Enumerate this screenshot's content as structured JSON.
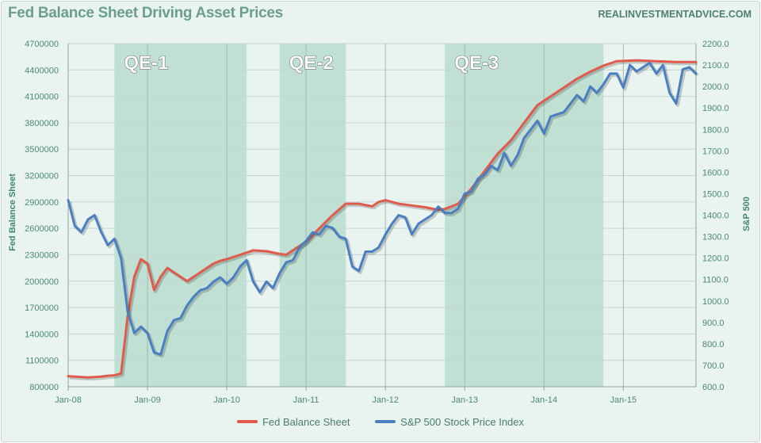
{
  "chart_data": {
    "type": "line",
    "title": "Fed Balance Sheet Driving Asset Prices",
    "source": "REALINVESTMENTADVICE.COM",
    "ylabel_left": "Fed Balance Sheet",
    "ylabel_right": "S&P 500",
    "ylim_left": [
      800000,
      4700000
    ],
    "ylim_right": [
      600.0,
      2200.0
    ],
    "xlim": [
      "2008-01",
      "2015-12"
    ],
    "y_ticks_left": [
      "800000",
      "1100000",
      "1400000",
      "1700000",
      "2000000",
      "2300000",
      "2600000",
      "2900000",
      "3200000",
      "3500000",
      "3800000",
      "4100000",
      "4400000",
      "4700000"
    ],
    "y_ticks_right": [
      "600.0",
      "700.0",
      "800.0",
      "900.0",
      "1000.0",
      "1100.0",
      "1200.0",
      "1300.0",
      "1400.0",
      "1500.0",
      "1600.0",
      "1700.0",
      "1800.0",
      "1900.0",
      "2000.0",
      "2100.0",
      "2200.0"
    ],
    "x_ticks": [
      {
        "label": "Jan-08",
        "x": "2008-01"
      },
      {
        "label": "Jan-09",
        "x": "2009-01"
      },
      {
        "label": "Jan-10",
        "x": "2010-01"
      },
      {
        "label": "Jan-11",
        "x": "2011-01"
      },
      {
        "label": "Jan-12",
        "x": "2012-01"
      },
      {
        "label": "Jan-13",
        "x": "2013-01"
      },
      {
        "label": "Jan-14",
        "x": "2014-01"
      },
      {
        "label": "Jan-15",
        "x": "2015-01"
      }
    ],
    "annotations": [
      {
        "label": "QE-1",
        "start": "2008-08",
        "end": "2010-04"
      },
      {
        "label": "QE-2",
        "start": "2010-09",
        "end": "2011-07"
      },
      {
        "label": "QE-3",
        "start": "2012-10",
        "end": "2014-10"
      }
    ],
    "grid": true,
    "legend_position": "bottom",
    "series": [
      {
        "name": "Fed Balance Sheet",
        "axis": "left",
        "color": "#e05b4c",
        "points": [
          [
            "2008-01",
            920000
          ],
          [
            "2008-02",
            915000
          ],
          [
            "2008-03",
            910000
          ],
          [
            "2008-04",
            905000
          ],
          [
            "2008-05",
            910000
          ],
          [
            "2008-06",
            915000
          ],
          [
            "2008-07",
            925000
          ],
          [
            "2008-08",
            930000
          ],
          [
            "2008-09",
            950000
          ],
          [
            "2008-10",
            1600000
          ],
          [
            "2008-11",
            2050000
          ],
          [
            "2008-12",
            2250000
          ],
          [
            "2009-01",
            2200000
          ],
          [
            "2009-02",
            1900000
          ],
          [
            "2009-03",
            2050000
          ],
          [
            "2009-04",
            2150000
          ],
          [
            "2009-05",
            2100000
          ],
          [
            "2009-06",
            2050000
          ],
          [
            "2009-07",
            2000000
          ],
          [
            "2009-08",
            2050000
          ],
          [
            "2009-09",
            2100000
          ],
          [
            "2009-10",
            2150000
          ],
          [
            "2009-11",
            2200000
          ],
          [
            "2009-12",
            2230000
          ],
          [
            "2010-01",
            2250000
          ],
          [
            "2010-03",
            2300000
          ],
          [
            "2010-05",
            2350000
          ],
          [
            "2010-07",
            2340000
          ],
          [
            "2010-09",
            2310000
          ],
          [
            "2010-10",
            2300000
          ],
          [
            "2010-11",
            2350000
          ],
          [
            "2011-01",
            2450000
          ],
          [
            "2011-03",
            2600000
          ],
          [
            "2011-05",
            2750000
          ],
          [
            "2011-07",
            2880000
          ],
          [
            "2011-09",
            2880000
          ],
          [
            "2011-11",
            2850000
          ],
          [
            "2011-12",
            2900000
          ],
          [
            "2012-01",
            2920000
          ],
          [
            "2012-03",
            2880000
          ],
          [
            "2012-05",
            2860000
          ],
          [
            "2012-07",
            2840000
          ],
          [
            "2012-09",
            2810000
          ],
          [
            "2012-10",
            2820000
          ],
          [
            "2012-12",
            2880000
          ],
          [
            "2013-02",
            3050000
          ],
          [
            "2013-04",
            3250000
          ],
          [
            "2013-06",
            3450000
          ],
          [
            "2013-08",
            3600000
          ],
          [
            "2013-10",
            3800000
          ],
          [
            "2013-12",
            4000000
          ],
          [
            "2014-02",
            4100000
          ],
          [
            "2014-04",
            4200000
          ],
          [
            "2014-06",
            4300000
          ],
          [
            "2014-08",
            4380000
          ],
          [
            "2014-10",
            4450000
          ],
          [
            "2014-12",
            4500000
          ],
          [
            "2015-03",
            4510000
          ],
          [
            "2015-06",
            4500000
          ],
          [
            "2015-09",
            4490000
          ],
          [
            "2015-12",
            4490000
          ]
        ]
      },
      {
        "name": "S&P 500 Stock Price Index",
        "axis": "right",
        "color": "#4a7fc1",
        "points": [
          [
            "2008-01",
            1470
          ],
          [
            "2008-02",
            1350
          ],
          [
            "2008-03",
            1320
          ],
          [
            "2008-04",
            1380
          ],
          [
            "2008-05",
            1400
          ],
          [
            "2008-06",
            1320
          ],
          [
            "2008-07",
            1260
          ],
          [
            "2008-08",
            1290
          ],
          [
            "2008-09",
            1200
          ],
          [
            "2008-10",
            950
          ],
          [
            "2008-11",
            850
          ],
          [
            "2008-12",
            880
          ],
          [
            "2009-01",
            850
          ],
          [
            "2009-02",
            760
          ],
          [
            "2009-03",
            750
          ],
          [
            "2009-04",
            860
          ],
          [
            "2009-05",
            910
          ],
          [
            "2009-06",
            920
          ],
          [
            "2009-07",
            980
          ],
          [
            "2009-08",
            1020
          ],
          [
            "2009-09",
            1050
          ],
          [
            "2009-10",
            1060
          ],
          [
            "2009-11",
            1090
          ],
          [
            "2009-12",
            1110
          ],
          [
            "2010-01",
            1080
          ],
          [
            "2010-02",
            1110
          ],
          [
            "2010-03",
            1160
          ],
          [
            "2010-04",
            1190
          ],
          [
            "2010-05",
            1090
          ],
          [
            "2010-06",
            1040
          ],
          [
            "2010-07",
            1090
          ],
          [
            "2010-08",
            1060
          ],
          [
            "2010-09",
            1130
          ],
          [
            "2010-10",
            1180
          ],
          [
            "2010-11",
            1190
          ],
          [
            "2010-12",
            1250
          ],
          [
            "2011-01",
            1280
          ],
          [
            "2011-02",
            1320
          ],
          [
            "2011-03",
            1310
          ],
          [
            "2011-04",
            1350
          ],
          [
            "2011-05",
            1340
          ],
          [
            "2011-06",
            1300
          ],
          [
            "2011-07",
            1290
          ],
          [
            "2011-08",
            1160
          ],
          [
            "2011-09",
            1140
          ],
          [
            "2011-10",
            1230
          ],
          [
            "2011-11",
            1230
          ],
          [
            "2011-12",
            1250
          ],
          [
            "2012-01",
            1310
          ],
          [
            "2012-02",
            1360
          ],
          [
            "2012-03",
            1400
          ],
          [
            "2012-04",
            1390
          ],
          [
            "2012-05",
            1310
          ],
          [
            "2012-06",
            1360
          ],
          [
            "2012-07",
            1380
          ],
          [
            "2012-08",
            1400
          ],
          [
            "2012-09",
            1440
          ],
          [
            "2012-10",
            1410
          ],
          [
            "2012-11",
            1410
          ],
          [
            "2012-12",
            1430
          ],
          [
            "2013-01",
            1500
          ],
          [
            "2013-02",
            1510
          ],
          [
            "2013-03",
            1570
          ],
          [
            "2013-04",
            1590
          ],
          [
            "2013-05",
            1630
          ],
          [
            "2013-06",
            1610
          ],
          [
            "2013-07",
            1690
          ],
          [
            "2013-08",
            1630
          ],
          [
            "2013-09",
            1680
          ],
          [
            "2013-10",
            1760
          ],
          [
            "2013-11",
            1800
          ],
          [
            "2013-12",
            1840
          ],
          [
            "2014-01",
            1780
          ],
          [
            "2014-02",
            1860
          ],
          [
            "2014-03",
            1870
          ],
          [
            "2014-04",
            1880
          ],
          [
            "2014-05",
            1920
          ],
          [
            "2014-06",
            1960
          ],
          [
            "2014-07",
            1930
          ],
          [
            "2014-08",
            2000
          ],
          [
            "2014-09",
            1970
          ],
          [
            "2014-10",
            2010
          ],
          [
            "2014-11",
            2060
          ],
          [
            "2014-12",
            2060
          ],
          [
            "2015-01",
            1995
          ],
          [
            "2015-02",
            2100
          ],
          [
            "2015-03",
            2070
          ],
          [
            "2015-04",
            2090
          ],
          [
            "2015-05",
            2110
          ],
          [
            "2015-06",
            2060
          ],
          [
            "2015-07",
            2100
          ],
          [
            "2015-08",
            1970
          ],
          [
            "2015-09",
            1920
          ],
          [
            "2015-10",
            2080
          ],
          [
            "2015-11",
            2090
          ],
          [
            "2015-12",
            2060
          ]
        ]
      }
    ]
  }
}
